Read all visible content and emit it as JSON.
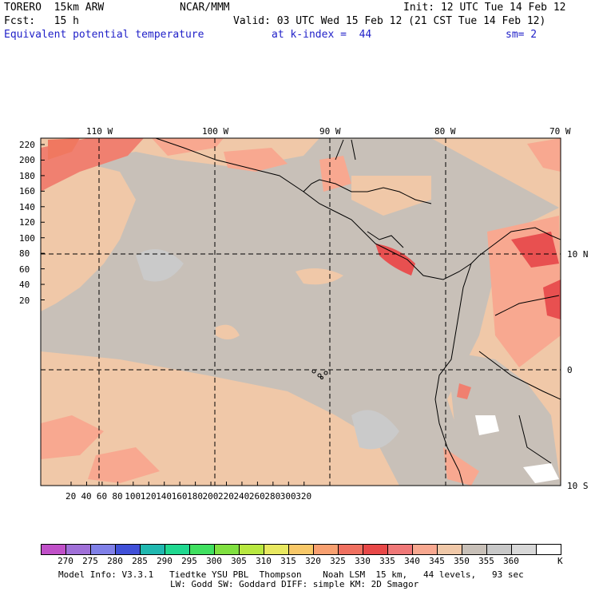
{
  "header": {
    "model": "TORERO  15km ARW",
    "org": "NCAR/MMM",
    "init": "Init: 12 UTC Tue 14 Feb 12",
    "fcst_label": "Fcst:   15 h",
    "valid": "Valid: 03 UTC Wed 15 Feb 12 (21 CST Tue 14 Feb 12)",
    "field": "Equivalent potential temperature",
    "level": "at k-index =  44",
    "smooth": "sm= 2"
  },
  "map": {
    "lon_labels": [
      "110 W",
      "100 W",
      "90 W",
      "80 W",
      "70 W"
    ],
    "lat_labels": [
      "10 N",
      "0",
      "10 S"
    ],
    "y_ticks": [
      "220",
      "200",
      "180",
      "160",
      "140",
      "120",
      "100",
      "80",
      "60",
      "40",
      "20"
    ],
    "x_ticks": [
      "20",
      "40",
      "60",
      "80",
      "100",
      "120",
      "140",
      "160",
      "180",
      "200",
      "220",
      "240",
      "260",
      "280",
      "300",
      "320"
    ]
  },
  "colorbar": {
    "labels": [
      "270",
      "275",
      "280",
      "285",
      "290",
      "295",
      "300",
      "305",
      "310",
      "315",
      "320",
      "325",
      "330",
      "335",
      "340",
      "345",
      "350",
      "355",
      "360"
    ],
    "unit": "K",
    "colors": [
      "#c050c8",
      "#a070d8",
      "#8080e8",
      "#4050d8",
      "#20b8b0",
      "#20d890",
      "#40e060",
      "#80e040",
      "#b8e840",
      "#e8e860",
      "#f8c868",
      "#f8a070",
      "#f07060",
      "#e84848",
      "#f07878",
      "#f8a890",
      "#f0c8a8",
      "#c8c0b8",
      "#c8c8c8",
      "#d8d8d8",
      "#ffffff"
    ]
  },
  "footer": {
    "line1": "Model Info: V3.3.1   Tiedtke YSU PBL  Thompson    Noah LSM  15 km,   44 levels,   93 sec",
    "line2": "LW: Godd SW: Goddard DIFF: simple KM: 2D Smagor"
  }
}
